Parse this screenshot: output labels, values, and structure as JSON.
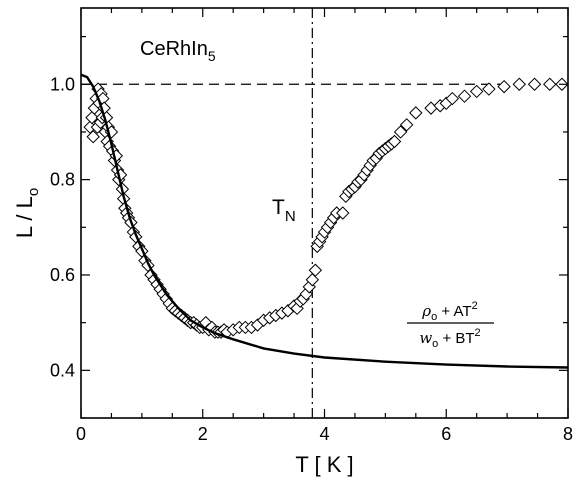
{
  "chart_data": {
    "type": "scatter",
    "xlabel": "T [ K ]",
    "ylabel": "L / L",
    "ylabel_sub": "o",
    "xlim": [
      0,
      8
    ],
    "ylim": [
      0.3,
      1.16
    ],
    "xticks": [
      0,
      2,
      4,
      6,
      8
    ],
    "xtick_labels": [
      "0",
      "2",
      "4",
      "6",
      "8"
    ],
    "yticks": [
      0.4,
      0.6,
      0.8,
      1.0
    ],
    "ytick_labels": [
      "0.4",
      "0.6",
      "0.8",
      "1.0"
    ],
    "sample_label": "CeRhIn",
    "sample_label_sub": "5",
    "reference_line_y": 1.0,
    "transition": {
      "x": 3.8,
      "label": "T",
      "label_sub": "N"
    },
    "formula": {
      "numerator": [
        "ρ",
        "o",
        " + AT",
        "2"
      ],
      "denominator": [
        "w",
        "o",
        " + BT",
        "2"
      ]
    },
    "series": [
      {
        "marker": "diamond",
        "points": [
          [
            0.15,
            0.91
          ],
          [
            0.18,
            0.93
          ],
          [
            0.2,
            0.89
          ],
          [
            0.22,
            0.95
          ],
          [
            0.25,
            0.97
          ],
          [
            0.27,
            0.91
          ],
          [
            0.28,
            0.99
          ],
          [
            0.3,
            0.96
          ],
          [
            0.32,
            0.92
          ],
          [
            0.33,
            0.98
          ],
          [
            0.35,
            0.93
          ],
          [
            0.36,
            0.97
          ],
          [
            0.38,
            0.95
          ],
          [
            0.4,
            0.9
          ],
          [
            0.42,
            0.93
          ],
          [
            0.43,
            0.88
          ],
          [
            0.45,
            0.91
          ],
          [
            0.47,
            0.87
          ],
          [
            0.5,
            0.9
          ],
          [
            0.52,
            0.86
          ],
          [
            0.55,
            0.84
          ],
          [
            0.58,
            0.85
          ],
          [
            0.6,
            0.82
          ],
          [
            0.62,
            0.8
          ],
          [
            0.65,
            0.81
          ],
          [
            0.68,
            0.78
          ],
          [
            0.7,
            0.76
          ],
          [
            0.72,
            0.74
          ],
          [
            0.75,
            0.73
          ],
          [
            0.78,
            0.72
          ],
          [
            0.82,
            0.71
          ],
          [
            0.86,
            0.69
          ],
          [
            0.9,
            0.68
          ],
          [
            0.95,
            0.66
          ],
          [
            1.0,
            0.65
          ],
          [
            1.05,
            0.63
          ],
          [
            1.1,
            0.62
          ],
          [
            1.15,
            0.6
          ],
          [
            1.2,
            0.59
          ],
          [
            1.25,
            0.58
          ],
          [
            1.3,
            0.57
          ],
          [
            1.35,
            0.56
          ],
          [
            1.4,
            0.55
          ],
          [
            1.45,
            0.54
          ],
          [
            1.5,
            0.53
          ],
          [
            1.55,
            0.525
          ],
          [
            1.6,
            0.52
          ],
          [
            1.65,
            0.515
          ],
          [
            1.7,
            0.51
          ],
          [
            1.75,
            0.505
          ],
          [
            1.8,
            0.5
          ],
          [
            1.85,
            0.5
          ],
          [
            1.9,
            0.495
          ],
          [
            1.95,
            0.49
          ],
          [
            2.0,
            0.49
          ],
          [
            2.05,
            0.5
          ],
          [
            2.1,
            0.485
          ],
          [
            2.15,
            0.49
          ],
          [
            2.2,
            0.48
          ],
          [
            2.25,
            0.48
          ],
          [
            2.3,
            0.48
          ],
          [
            2.35,
            0.485
          ],
          [
            2.4,
            0.48
          ],
          [
            2.5,
            0.485
          ],
          [
            2.6,
            0.49
          ],
          [
            2.7,
            0.49
          ],
          [
            2.8,
            0.49
          ],
          [
            2.9,
            0.495
          ],
          [
            3.0,
            0.505
          ],
          [
            3.1,
            0.51
          ],
          [
            3.2,
            0.515
          ],
          [
            3.3,
            0.52
          ],
          [
            3.4,
            0.525
          ],
          [
            3.5,
            0.535
          ],
          [
            3.55,
            0.53
          ],
          [
            3.6,
            0.545
          ],
          [
            3.65,
            0.55
          ],
          [
            3.7,
            0.56
          ],
          [
            3.75,
            0.575
          ],
          [
            3.8,
            0.59
          ],
          [
            3.85,
            0.61
          ],
          [
            3.88,
            0.66
          ],
          [
            3.92,
            0.67
          ],
          [
            3.96,
            0.68
          ],
          [
            4.0,
            0.69
          ],
          [
            4.05,
            0.7
          ],
          [
            4.1,
            0.71
          ],
          [
            4.15,
            0.72
          ],
          [
            4.2,
            0.73
          ],
          [
            4.3,
            0.73
          ],
          [
            4.35,
            0.765
          ],
          [
            4.4,
            0.775
          ],
          [
            4.45,
            0.78
          ],
          [
            4.5,
            0.785
          ],
          [
            4.55,
            0.795
          ],
          [
            4.6,
            0.8
          ],
          [
            4.65,
            0.81
          ],
          [
            4.7,
            0.82
          ],
          [
            4.75,
            0.83
          ],
          [
            4.8,
            0.84
          ],
          [
            4.85,
            0.845
          ],
          [
            4.9,
            0.855
          ],
          [
            4.95,
            0.86
          ],
          [
            5.0,
            0.865
          ],
          [
            5.05,
            0.87
          ],
          [
            5.1,
            0.875
          ],
          [
            5.15,
            0.88
          ],
          [
            5.25,
            0.9
          ],
          [
            5.35,
            0.915
          ],
          [
            5.5,
            0.94
          ],
          [
            5.75,
            0.95
          ],
          [
            5.9,
            0.955
          ],
          [
            6.0,
            0.96
          ],
          [
            6.1,
            0.97
          ],
          [
            6.3,
            0.975
          ],
          [
            6.5,
            0.985
          ],
          [
            6.7,
            0.99
          ],
          [
            6.95,
            0.995
          ],
          [
            7.2,
            1.0
          ],
          [
            7.45,
            1.0
          ],
          [
            7.7,
            1.0
          ],
          [
            7.9,
            1.0
          ]
        ]
      },
      {
        "line": "solid",
        "points": [
          [
            0.0,
            1.02
          ],
          [
            0.1,
            1.015
          ],
          [
            0.2,
            0.995
          ],
          [
            0.3,
            0.965
          ],
          [
            0.4,
            0.925
          ],
          [
            0.5,
            0.875
          ],
          [
            0.6,
            0.82
          ],
          [
            0.7,
            0.765
          ],
          [
            0.8,
            0.72
          ],
          [
            0.9,
            0.685
          ],
          [
            1.0,
            0.655
          ],
          [
            1.1,
            0.625
          ],
          [
            1.2,
            0.6
          ],
          [
            1.4,
            0.56
          ],
          [
            1.6,
            0.53
          ],
          [
            1.8,
            0.505
          ],
          [
            2.0,
            0.49
          ],
          [
            2.2,
            0.478
          ],
          [
            2.5,
            0.465
          ],
          [
            3.0,
            0.446
          ],
          [
            3.5,
            0.435
          ],
          [
            4.0,
            0.427
          ],
          [
            5.0,
            0.418
          ],
          [
            6.0,
            0.412
          ],
          [
            7.0,
            0.408
          ],
          [
            8.0,
            0.406
          ]
        ]
      }
    ]
  }
}
